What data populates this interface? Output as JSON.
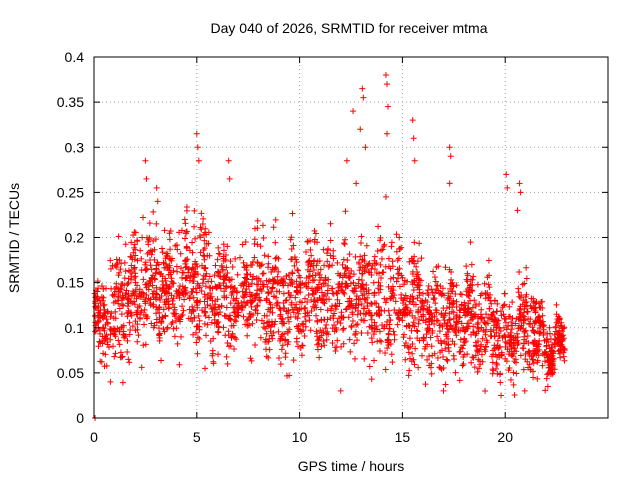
{
  "chart_data": {
    "type": "scatter",
    "title": "Day 040 of 2026, SRMTID for receiver mtma",
    "xlabel": "GPS time / hours",
    "ylabel": "SRMTID / TECUs",
    "xlim": [
      0,
      25
    ],
    "ylim": [
      0,
      0.4
    ],
    "xticks": [
      0,
      5,
      10,
      15,
      20
    ],
    "yticks": [
      0,
      0.05,
      0.1,
      0.15,
      0.2,
      0.25,
      0.3,
      0.35,
      0.4
    ],
    "xtick_labels": [
      "0",
      "5",
      "10",
      "15",
      "20"
    ],
    "ytick_labels": [
      "0",
      "0.05",
      "0.1",
      "0.15",
      "0.2",
      "0.25",
      "0.3",
      "0.35",
      "0.4"
    ],
    "grid": true,
    "marker": "+",
    "marker_color": "#ff0000",
    "x_data_end": 22.9,
    "envelope": {
      "hours": [
        0,
        0.5,
        1,
        1.5,
        2,
        2.5,
        3,
        3.5,
        4,
        4.5,
        5,
        5.5,
        6,
        6.5,
        7,
        7.5,
        8,
        8.5,
        9,
        9.5,
        10,
        10.5,
        11,
        11.5,
        12,
        12.5,
        13,
        13.5,
        14,
        14.5,
        15,
        15.5,
        16,
        16.5,
        17,
        17.5,
        18,
        18.5,
        19,
        19.5,
        20,
        20.5,
        21,
        21.5,
        22,
        22.5,
        22.9
      ],
      "median": [
        0.09,
        0.11,
        0.115,
        0.13,
        0.14,
        0.15,
        0.145,
        0.14,
        0.15,
        0.15,
        0.15,
        0.14,
        0.13,
        0.125,
        0.13,
        0.14,
        0.14,
        0.135,
        0.13,
        0.12,
        0.13,
        0.14,
        0.14,
        0.13,
        0.13,
        0.13,
        0.14,
        0.14,
        0.13,
        0.13,
        0.125,
        0.12,
        0.12,
        0.11,
        0.11,
        0.11,
        0.115,
        0.11,
        0.1,
        0.095,
        0.09,
        0.1,
        0.1,
        0.09,
        0.08,
        0.08,
        0.08
      ],
      "spread": [
        0.03,
        0.04,
        0.045,
        0.05,
        0.05,
        0.055,
        0.055,
        0.05,
        0.05,
        0.05,
        0.05,
        0.05,
        0.05,
        0.05,
        0.05,
        0.05,
        0.05,
        0.05,
        0.045,
        0.045,
        0.05,
        0.05,
        0.05,
        0.05,
        0.05,
        0.05,
        0.055,
        0.06,
        0.06,
        0.055,
        0.05,
        0.05,
        0.05,
        0.045,
        0.045,
        0.045,
        0.045,
        0.045,
        0.04,
        0.04,
        0.04,
        0.04,
        0.04,
        0.035,
        0.03,
        0.02,
        0.02
      ]
    },
    "outliers": [
      {
        "x": 0.05,
        "y": 0.0
      },
      {
        "x": 2.5,
        "y": 0.285
      },
      {
        "x": 2.55,
        "y": 0.265
      },
      {
        "x": 3.05,
        "y": 0.255
      },
      {
        "x": 3.1,
        "y": 0.24
      },
      {
        "x": 5.0,
        "y": 0.315
      },
      {
        "x": 5.05,
        "y": 0.3
      },
      {
        "x": 5.1,
        "y": 0.285
      },
      {
        "x": 6.55,
        "y": 0.285
      },
      {
        "x": 6.6,
        "y": 0.265
      },
      {
        "x": 5.4,
        "y": 0.055
      },
      {
        "x": 6.5,
        "y": 0.06
      },
      {
        "x": 12.6,
        "y": 0.34
      },
      {
        "x": 12.95,
        "y": 0.32
      },
      {
        "x": 13.05,
        "y": 0.365
      },
      {
        "x": 13.1,
        "y": 0.355
      },
      {
        "x": 13.2,
        "y": 0.3
      },
      {
        "x": 12.75,
        "y": 0.26
      },
      {
        "x": 12.3,
        "y": 0.285
      },
      {
        "x": 14.2,
        "y": 0.38
      },
      {
        "x": 14.25,
        "y": 0.37
      },
      {
        "x": 14.3,
        "y": 0.345
      },
      {
        "x": 14.25,
        "y": 0.315
      },
      {
        "x": 14.2,
        "y": 0.245
      },
      {
        "x": 15.5,
        "y": 0.33
      },
      {
        "x": 15.55,
        "y": 0.31
      },
      {
        "x": 15.6,
        "y": 0.285
      },
      {
        "x": 17.3,
        "y": 0.3
      },
      {
        "x": 17.35,
        "y": 0.29
      },
      {
        "x": 17.3,
        "y": 0.26
      },
      {
        "x": 20.05,
        "y": 0.27
      },
      {
        "x": 20.1,
        "y": 0.255
      },
      {
        "x": 20.7,
        "y": 0.26
      },
      {
        "x": 20.75,
        "y": 0.25
      },
      {
        "x": 20.6,
        "y": 0.23
      },
      {
        "x": 12.0,
        "y": 0.03
      },
      {
        "x": 19.8,
        "y": 0.025
      },
      {
        "x": 20.95,
        "y": 0.03
      },
      {
        "x": 0.8,
        "y": 0.04
      },
      {
        "x": 17.0,
        "y": 0.03
      }
    ],
    "sample_count": 2600
  }
}
